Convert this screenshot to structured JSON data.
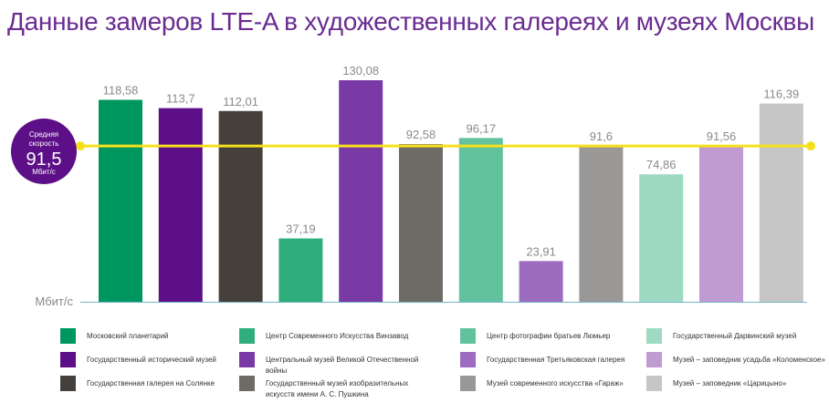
{
  "title": "Данные замеров LTE-A в художественных галереях и музеях Москвы",
  "average": {
    "line1": "Средняя",
    "line2": "скорость",
    "value": "91,5",
    "unit": "Мбит/с"
  },
  "colors": {
    "title": "#6a2c91",
    "avg_line": "#f7e01b",
    "avg_bubble": "#5c0f86"
  },
  "chart_data": {
    "type": "bar",
    "categories": [
      "Московский планетарий",
      "Государственный исторический музей",
      "Государственная галерея на Солянке",
      "Центр Современного Искусства Винзавод",
      "Центральный музей Великой Отечественной войны",
      "Государственный музей изобразительных искусств имени А. С. Пушкина",
      "Центр фотографии братьев Люмьер",
      "Государственная Третьяковская галерея",
      "Музей современного искусства «Гараж»",
      "Государственный Дарвинский музей",
      "Музей – заповедник усадьба «Коломенское»",
      "Музей – заповедник «Царицыно»"
    ],
    "values": [
      118.58,
      113.7,
      112.01,
      37.19,
      130.08,
      92.58,
      96.17,
      23.91,
      91.6,
      74.86,
      91.56,
      116.39
    ],
    "value_labels": [
      "118,58",
      "113,7",
      "112,01",
      "37,19",
      "130,08",
      "92,58",
      "96,17",
      "23,91",
      "91,6",
      "74,86",
      "91,56",
      "116,39"
    ],
    "colors": [
      "#00965f",
      "#5c0f86",
      "#45403b",
      "#2fad7b",
      "#7a3aa6",
      "#6e6b67",
      "#63c29e",
      "#9d6cc0",
      "#9a9896",
      "#9ed9c1",
      "#c09bd1",
      "#c6c6c6"
    ],
    "average": 91.5,
    "ylabel": "Мбит/с",
    "ylim": [
      0,
      130.08
    ],
    "grid": false,
    "legend_position": "bottom"
  }
}
